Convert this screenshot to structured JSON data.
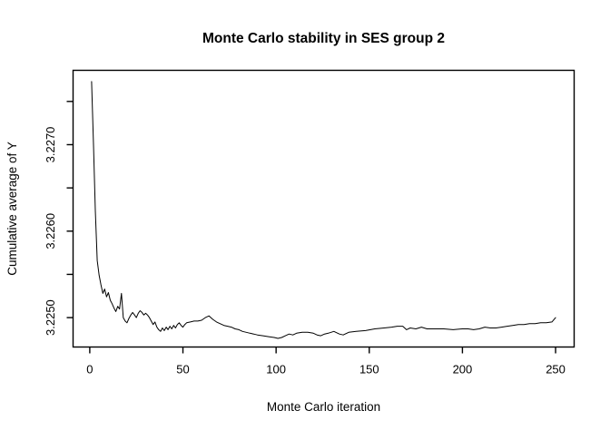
{
  "figure": {
    "background": "#ffffff",
    "foreground": "#000000"
  },
  "chart_data": {
    "type": "line",
    "title": "Monte Carlo stability in SES group 2",
    "xlabel": "Monte Carlo iteration",
    "ylabel": "Cumulative average of Y",
    "xlim": [
      -8.96,
      259.96
    ],
    "ylim": [
      3.22466,
      3.22786
    ],
    "grid": false,
    "legend": "none",
    "line_color": "#000000",
    "x_ticks": [
      {
        "v": 0,
        "label": "0"
      },
      {
        "v": 50,
        "label": "50"
      },
      {
        "v": 100,
        "label": "100"
      },
      {
        "v": 150,
        "label": "150"
      },
      {
        "v": 200,
        "label": "200"
      },
      {
        "v": 250,
        "label": "250"
      }
    ],
    "y_ticks": [
      {
        "v": 3.225,
        "label": "3.2250"
      },
      {
        "v": 3.2255,
        "label": ""
      },
      {
        "v": 3.226,
        "label": "3.2260"
      },
      {
        "v": 3.2265,
        "label": ""
      },
      {
        "v": 3.227,
        "label": "3.2270"
      },
      {
        "v": 3.2275,
        "label": ""
      }
    ],
    "series": [
      {
        "name": "cumulative-average-of-Y",
        "points": [
          [
            1,
            3.22773
          ],
          [
            2,
            3.227
          ],
          [
            3,
            3.22624
          ],
          [
            4,
            3.22566
          ],
          [
            5,
            3.22549
          ],
          [
            6,
            3.22538
          ],
          [
            7,
            3.22528
          ],
          [
            8,
            3.22533
          ],
          [
            9,
            3.22524
          ],
          [
            10,
            3.22529
          ],
          [
            11,
            3.2252
          ],
          [
            12,
            3.22516
          ],
          [
            13,
            3.22511
          ],
          [
            14,
            3.22507
          ],
          [
            15,
            3.22513
          ],
          [
            16,
            3.2251
          ],
          [
            17,
            3.22528
          ],
          [
            18,
            3.225
          ],
          [
            19,
            3.22496
          ],
          [
            20,
            3.22494
          ],
          [
            21,
            3.22499
          ],
          [
            22,
            3.22503
          ],
          [
            23,
            3.22506
          ],
          [
            24,
            3.22503
          ],
          [
            25,
            3.225
          ],
          [
            26,
            3.22505
          ],
          [
            27,
            3.22508
          ],
          [
            28,
            3.22506
          ],
          [
            29,
            3.22503
          ],
          [
            30,
            3.22505
          ],
          [
            31,
            3.22503
          ],
          [
            32,
            3.225
          ],
          [
            33,
            3.22496
          ],
          [
            34,
            3.22492
          ],
          [
            35,
            3.22495
          ],
          [
            36,
            3.22489
          ],
          [
            37,
            3.22486
          ],
          [
            38,
            3.22484
          ],
          [
            39,
            3.22488
          ],
          [
            40,
            3.22485
          ],
          [
            41,
            3.22489
          ],
          [
            42,
            3.22486
          ],
          [
            43,
            3.2249
          ],
          [
            44,
            3.22487
          ],
          [
            45,
            3.22491
          ],
          [
            46,
            3.22488
          ],
          [
            47,
            3.22492
          ],
          [
            48,
            3.22494
          ],
          [
            49,
            3.22491
          ],
          [
            50,
            3.22489
          ],
          [
            51,
            3.22492
          ],
          [
            52,
            3.22494
          ],
          [
            54,
            3.22495
          ],
          [
            56,
            3.22496
          ],
          [
            58,
            3.22496
          ],
          [
            60,
            3.22497
          ],
          [
            62,
            3.225
          ],
          [
            64,
            3.22502
          ],
          [
            65,
            3.225
          ],
          [
            66,
            3.22498
          ],
          [
            68,
            3.22495
          ],
          [
            70,
            3.22493
          ],
          [
            72,
            3.22491
          ],
          [
            74,
            3.2249
          ],
          [
            76,
            3.22489
          ],
          [
            78,
            3.22487
          ],
          [
            80,
            3.22486
          ],
          [
            82,
            3.22484
          ],
          [
            84,
            3.22483
          ],
          [
            86,
            3.22482
          ],
          [
            88,
            3.22481
          ],
          [
            90,
            3.2248
          ],
          [
            93,
            3.22479
          ],
          [
            96,
            3.22478
          ],
          [
            99,
            3.22477
          ],
          [
            101,
            3.22476
          ],
          [
            103,
            3.22477
          ],
          [
            105,
            3.22479
          ],
          [
            107,
            3.22481
          ],
          [
            109,
            3.2248
          ],
          [
            111,
            3.22482
          ],
          [
            114,
            3.22483
          ],
          [
            117,
            3.22483
          ],
          [
            120,
            3.22482
          ],
          [
            122,
            3.2248
          ],
          [
            124,
            3.22479
          ],
          [
            126,
            3.22481
          ],
          [
            128,
            3.22482
          ],
          [
            131,
            3.22484
          ],
          [
            134,
            3.22481
          ],
          [
            136,
            3.2248
          ],
          [
            139,
            3.22483
          ],
          [
            143,
            3.22484
          ],
          [
            148,
            3.22485
          ],
          [
            153,
            3.22487
          ],
          [
            158,
            3.22488
          ],
          [
            162,
            3.22489
          ],
          [
            165,
            3.2249
          ],
          [
            168,
            3.2249
          ],
          [
            170,
            3.22486
          ],
          [
            172,
            3.22488
          ],
          [
            175,
            3.22487
          ],
          [
            178,
            3.22489
          ],
          [
            181,
            3.22487
          ],
          [
            185,
            3.22487
          ],
          [
            190,
            3.22487
          ],
          [
            195,
            3.22486
          ],
          [
            200,
            3.22487
          ],
          [
            203,
            3.22487
          ],
          [
            206,
            3.22486
          ],
          [
            209,
            3.22487
          ],
          [
            212,
            3.22489
          ],
          [
            215,
            3.22488
          ],
          [
            218,
            3.22488
          ],
          [
            221,
            3.22489
          ],
          [
            224,
            3.2249
          ],
          [
            227,
            3.22491
          ],
          [
            230,
            3.22492
          ],
          [
            233,
            3.22492
          ],
          [
            236,
            3.22493
          ],
          [
            239,
            3.22493
          ],
          [
            242,
            3.22494
          ],
          [
            245,
            3.22494
          ],
          [
            248,
            3.22495
          ],
          [
            250,
            3.225
          ]
        ]
      }
    ]
  }
}
